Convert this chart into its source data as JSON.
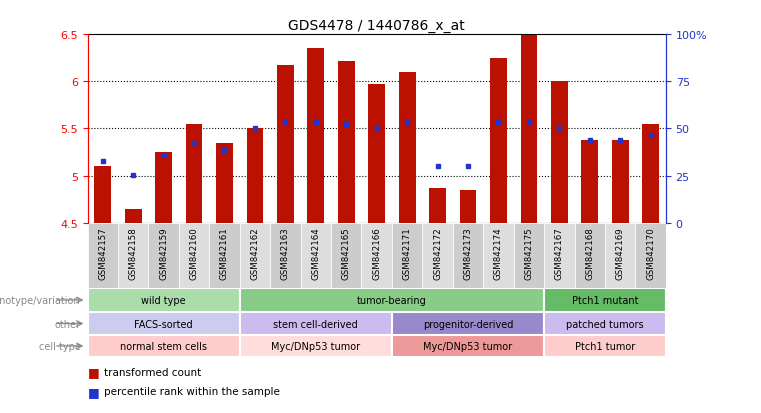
{
  "title": "GDS4478 / 1440786_x_at",
  "samples": [
    "GSM842157",
    "GSM842158",
    "GSM842159",
    "GSM842160",
    "GSM842161",
    "GSM842162",
    "GSM842163",
    "GSM842164",
    "GSM842165",
    "GSM842166",
    "GSM842171",
    "GSM842172",
    "GSM842173",
    "GSM842174",
    "GSM842175",
    "GSM842167",
    "GSM842168",
    "GSM842169",
    "GSM842170"
  ],
  "bar_values": [
    5.1,
    4.65,
    5.25,
    5.55,
    5.35,
    5.5,
    6.17,
    6.35,
    6.22,
    5.97,
    6.1,
    4.87,
    4.85,
    6.25,
    6.5,
    6.0,
    5.38,
    5.38,
    5.55
  ],
  "blue_values": [
    5.16,
    5.01,
    5.22,
    5.35,
    5.27,
    5.5,
    5.57,
    5.57,
    5.55,
    5.5,
    5.57,
    5.1,
    5.1,
    5.57,
    5.57,
    5.5,
    5.38,
    5.38,
    5.43
  ],
  "ylim_min": 4.5,
  "ylim_max": 6.5,
  "yticks": [
    4.5,
    5.0,
    5.5,
    6.0,
    6.5
  ],
  "ytick_labels": [
    "4.5",
    "5",
    "5.5",
    "6",
    "6.5"
  ],
  "right_yticks": [
    0,
    25,
    50,
    75,
    100
  ],
  "right_ytick_labels": [
    "0",
    "25",
    "50",
    "75",
    "100%"
  ],
  "bar_color": "#bb1100",
  "blue_color": "#2233cc",
  "bar_bottom": 4.5,
  "gridlines": [
    5.0,
    5.5,
    6.0
  ],
  "geno_groups": [
    {
      "label": "wild type",
      "start": 0,
      "end": 5,
      "color": "#aaddaa"
    },
    {
      "label": "tumor-bearing",
      "start": 5,
      "end": 15,
      "color": "#88cc88"
    },
    {
      "label": "Ptch1 mutant",
      "start": 15,
      "end": 19,
      "color": "#66bb66"
    }
  ],
  "other_groups": [
    {
      "label": "FACS-sorted",
      "start": 0,
      "end": 5,
      "color": "#ccccee"
    },
    {
      "label": "stem cell-derived",
      "start": 5,
      "end": 10,
      "color": "#ccbbee"
    },
    {
      "label": "progenitor-derived",
      "start": 10,
      "end": 15,
      "color": "#9988cc"
    },
    {
      "label": "patched tumors",
      "start": 15,
      "end": 19,
      "color": "#ccbbee"
    }
  ],
  "cell_groups": [
    {
      "label": "normal stem cells",
      "start": 0,
      "end": 5,
      "color": "#ffcccc"
    },
    {
      "label": "Myc/DNp53 tumor",
      "start": 5,
      "end": 10,
      "color": "#ffdddd"
    },
    {
      "label": "Myc/DNp53 tumor",
      "start": 10,
      "end": 15,
      "color": "#ee9999"
    },
    {
      "label": "Ptch1 tumor",
      "start": 15,
      "end": 19,
      "color": "#ffcccc"
    }
  ],
  "row_labels": [
    "genotype/variation",
    "other",
    "cell type"
  ],
  "legend_items": [
    {
      "color": "#bb1100",
      "label": "transformed count"
    },
    {
      "color": "#2233cc",
      "label": "percentile rank within the sample"
    }
  ],
  "xtick_bg_odd": "#cccccc",
  "xtick_bg_even": "#dddddd"
}
